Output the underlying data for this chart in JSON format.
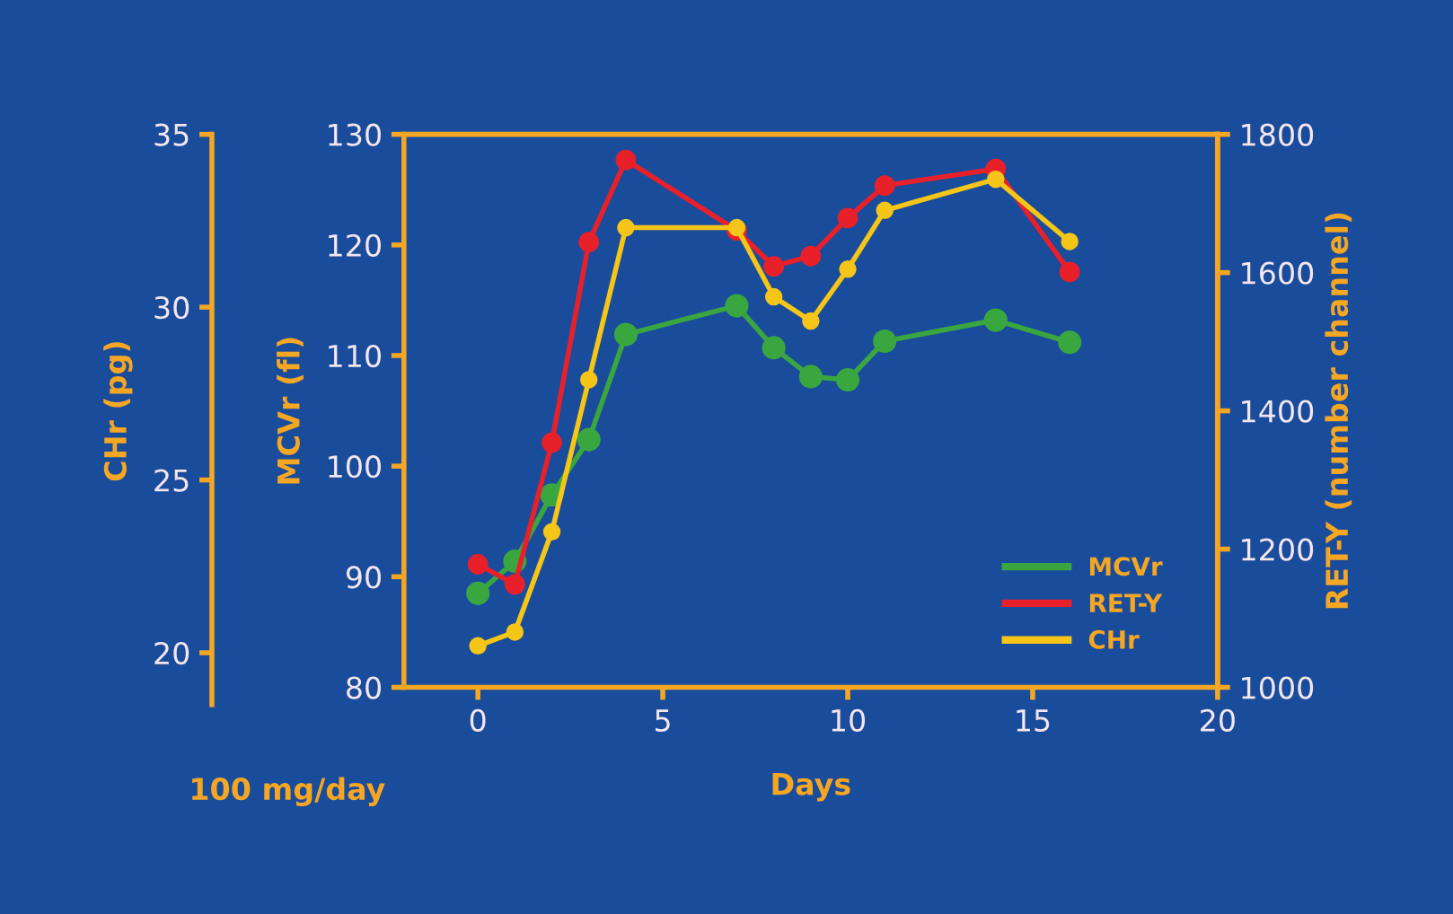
{
  "chart_data": {
    "type": "line",
    "xlabel": "Days",
    "ylabel": "MCVr (fl)",
    "y2label": "RET-Y (number channel)",
    "y3label": "CHr (pg)",
    "annotations": [
      "100 mg/day"
    ],
    "xlim": [
      -2,
      20
    ],
    "xticks": [
      0,
      5,
      10,
      15,
      20
    ],
    "ylim": [
      80,
      130
    ],
    "yticks": [
      80,
      90,
      100,
      110,
      120,
      130
    ],
    "y2lim": [
      1000,
      1800
    ],
    "y2ticks": [
      1000,
      1200,
      1400,
      1600,
      1800
    ],
    "y3lim": [
      19,
      35
    ],
    "y3ticks": [
      20,
      25,
      30,
      35
    ],
    "x": [
      0,
      1,
      2,
      3,
      4,
      7,
      8,
      9,
      10,
      11,
      14,
      16
    ],
    "series": [
      {
        "name": "MCVr",
        "color": "#3aa640",
        "axis": "y",
        "values": [
          88.5,
          91.4,
          97.4,
          102.4,
          111.9,
          114.5,
          110.7,
          108.1,
          107.8,
          111.3,
          113.2,
          111.2
        ]
      },
      {
        "name": "RET-Y",
        "color": "#e8202a",
        "axis": "y2",
        "values": [
          1178,
          1149,
          1354,
          1644,
          1763,
          1661,
          1609,
          1624,
          1679,
          1726,
          1750,
          1601
        ]
      },
      {
        "name": "CHr",
        "color": "#f5c518",
        "axis": "y3",
        "values": [
          20.2,
          20.6,
          23.5,
          27.9,
          32.3,
          32.3,
          30.3,
          29.6,
          31.1,
          32.8,
          33.7,
          31.9
        ]
      }
    ],
    "marker": "circle",
    "line_style": "solid",
    "grid": false,
    "legend": "bottom right"
  }
}
